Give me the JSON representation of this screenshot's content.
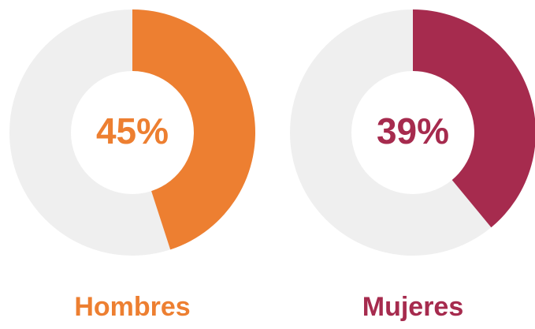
{
  "chart_data": [
    {
      "type": "donut",
      "title": "Hombres",
      "values": [
        45
      ],
      "value_labels": [
        "45%"
      ],
      "color": "#ed7f31",
      "track_color": "#efefef"
    },
    {
      "type": "donut",
      "title": "Mujeres",
      "values": [
        39
      ],
      "value_labels": [
        "39%"
      ],
      "color": "#a62b4e",
      "track_color": "#efefef"
    }
  ]
}
